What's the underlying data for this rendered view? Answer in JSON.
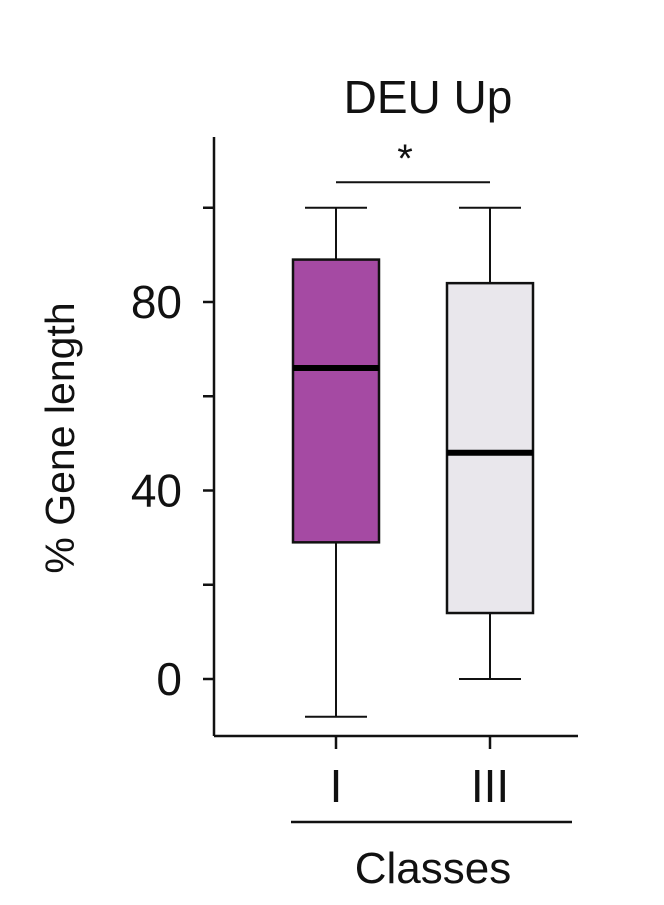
{
  "chart_data": {
    "type": "box",
    "title": "DEU Up",
    "xlabel": "Classes",
    "ylabel": "% Gene length",
    "ylim": [
      -12,
      116
    ],
    "y_ticks_labeled": [
      0,
      40,
      80
    ],
    "y_ticks_minor": [
      20,
      60,
      100
    ],
    "categories": [
      "I",
      "III"
    ],
    "boxes": [
      {
        "category": "I",
        "whisker_low": -8,
        "q1": 29,
        "median": 66,
        "q3": 89,
        "whisker_high": 100,
        "color": "#a54aa3"
      },
      {
        "category": "III",
        "whisker_low": 0,
        "q1": 14,
        "median": 48,
        "q3": 84,
        "whisker_high": 100,
        "color": "#e9e7ec"
      }
    ],
    "significance": {
      "between": [
        "I",
        "III"
      ],
      "label": "*",
      "level": 105
    },
    "grid": false,
    "legend": "none"
  }
}
